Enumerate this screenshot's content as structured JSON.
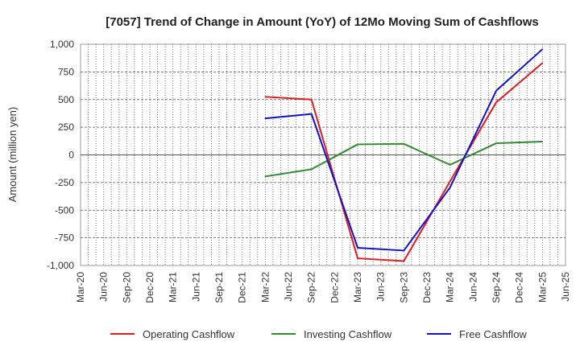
{
  "chart_data": {
    "type": "line",
    "title": "[7057]  Trend of Change in Amount (YoY) of 12Mo Moving Sum of Cashflows",
    "xlabel": "",
    "ylabel": "Amount (million yen)",
    "ylim": [
      -1000,
      1000
    ],
    "yticks": [
      1000,
      750,
      500,
      250,
      0,
      -250,
      -500,
      -750,
      -1000
    ],
    "ytick_labels": [
      "1,000",
      "750",
      "500",
      "250",
      "0",
      "-250",
      "-500",
      "-750",
      "-1,000"
    ],
    "categories": [
      "Mar-20",
      "Jun-20",
      "Sep-20",
      "Dec-20",
      "Mar-21",
      "Jun-21",
      "Sep-21",
      "Dec-21",
      "Mar-22",
      "Jun-22",
      "Sep-22",
      "Dec-22",
      "Mar-23",
      "Jun-23",
      "Sep-23",
      "Dec-23",
      "Mar-24",
      "Jun-24",
      "Sep-24",
      "Dec-24",
      "Mar-25",
      "Jun-25"
    ],
    "grid": true,
    "legend_position": "bottom",
    "series": [
      {
        "name": "Operating Cashflow",
        "color": "#e41a1c",
        "x": [
          "Mar-22",
          "Sep-22",
          "Mar-23",
          "Sep-23",
          "Mar-24",
          "Sep-24",
          "Mar-25"
        ],
        "values": [
          525,
          500,
          -935,
          -960,
          -240,
          475,
          830
        ]
      },
      {
        "name": "Investing Cashflow",
        "color": "#2e8b2e",
        "x": [
          "Mar-22",
          "Sep-22",
          "Mar-23",
          "Sep-23",
          "Mar-24",
          "Sep-24",
          "Mar-25"
        ],
        "values": [
          -195,
          -130,
          95,
          100,
          -90,
          105,
          120
        ]
      },
      {
        "name": "Free Cashflow",
        "color": "#1010d0",
        "x": [
          "Mar-22",
          "Sep-22",
          "Mar-23",
          "Sep-23",
          "Mar-24",
          "Sep-24",
          "Mar-25"
        ],
        "values": [
          330,
          370,
          -840,
          -865,
          -295,
          580,
          955
        ]
      }
    ]
  }
}
